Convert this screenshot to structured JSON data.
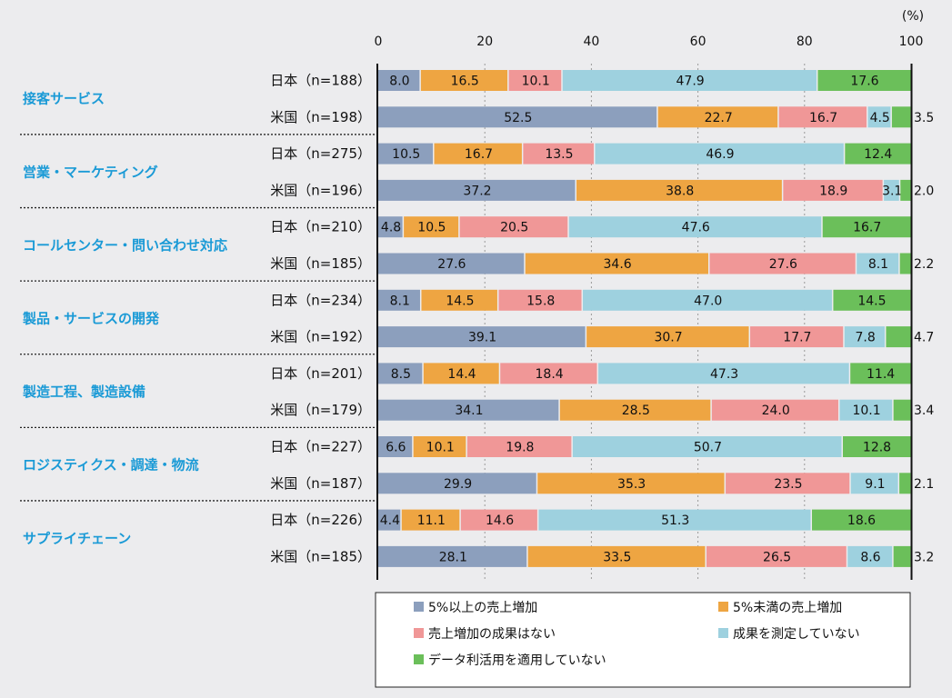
{
  "chart_data": {
    "type": "bar",
    "orientation": "horizontal",
    "stacked": true,
    "unit_label": "(%)",
    "xlim": [
      0,
      100
    ],
    "xticks": [
      0,
      20,
      40,
      60,
      80,
      100
    ],
    "series": [
      {
        "name": "5%以上の売上増加",
        "color": "#8c9fbd"
      },
      {
        "name": "5%未満の売上増加",
        "color": "#eea542"
      },
      {
        "name": "売上増加の成果はない",
        "color": "#f09797"
      },
      {
        "name": "成果を測定していない",
        "color": "#9ed1df"
      },
      {
        "name": "データ利活用を適用していない",
        "color": "#6bbf5a"
      }
    ],
    "categories": [
      {
        "name": "接客サービス",
        "rows": [
          {
            "label": "日本（n=188）",
            "values": [
              8.0,
              16.5,
              10.1,
              47.9,
              17.6
            ]
          },
          {
            "label": "米国（n=198）",
            "values": [
              52.5,
              22.7,
              16.7,
              4.5,
              3.5
            ]
          }
        ]
      },
      {
        "name": "営業・マーケティング",
        "rows": [
          {
            "label": "日本（n=275）",
            "values": [
              10.5,
              16.7,
              13.5,
              46.9,
              12.4
            ]
          },
          {
            "label": "米国（n=196）",
            "values": [
              37.2,
              38.8,
              18.9,
              3.1,
              2.0
            ]
          }
        ]
      },
      {
        "name": "コールセンター・問い合わせ対応",
        "rows": [
          {
            "label": "日本（n=210）",
            "values": [
              4.8,
              10.5,
              20.5,
              47.6,
              16.7
            ]
          },
          {
            "label": "米国（n=185）",
            "values": [
              27.6,
              34.6,
              27.6,
              8.1,
              2.2
            ]
          }
        ]
      },
      {
        "name": "製品・サービスの開発",
        "rows": [
          {
            "label": "日本（n=234）",
            "values": [
              8.1,
              14.5,
              15.8,
              47.0,
              14.5
            ]
          },
          {
            "label": "米国（n=192）",
            "values": [
              39.1,
              30.7,
              17.7,
              7.8,
              4.7
            ]
          }
        ]
      },
      {
        "name": "製造工程、製造設備",
        "rows": [
          {
            "label": "日本（n=201）",
            "values": [
              8.5,
              14.4,
              18.4,
              47.3,
              11.4
            ]
          },
          {
            "label": "米国（n=179）",
            "values": [
              34.1,
              28.5,
              24.0,
              10.1,
              3.4
            ]
          }
        ]
      },
      {
        "name": "ロジスティクス・調達・物流",
        "rows": [
          {
            "label": "日本（n=227）",
            "values": [
              6.6,
              10.1,
              19.8,
              50.7,
              12.8
            ]
          },
          {
            "label": "米国（n=187）",
            "values": [
              29.9,
              35.3,
              23.5,
              9.1,
              2.1
            ]
          }
        ]
      },
      {
        "name": "サプライチェーン",
        "rows": [
          {
            "label": "日本（n=226）",
            "values": [
              4.4,
              11.1,
              14.6,
              51.3,
              18.6
            ]
          },
          {
            "label": "米国（n=185）",
            "values": [
              28.1,
              33.5,
              26.5,
              8.6,
              3.2
            ]
          }
        ]
      }
    ]
  }
}
